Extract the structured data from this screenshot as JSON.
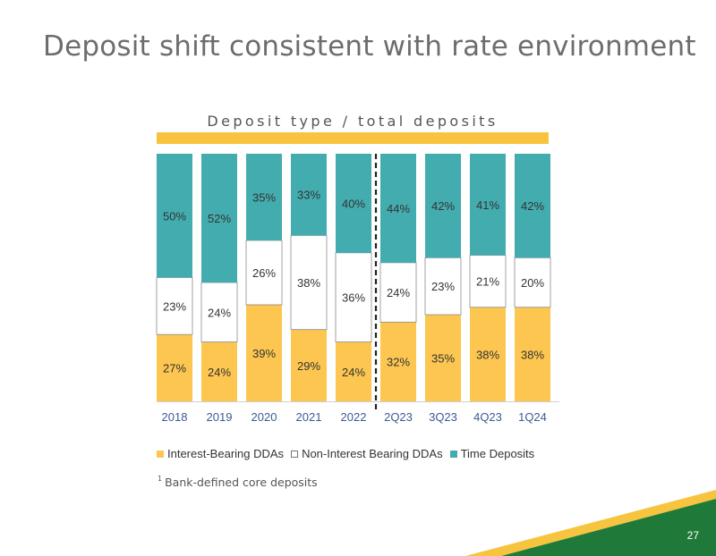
{
  "title": "Deposit shift consistent with rate environment",
  "chart_header": "Deposit type / total deposits",
  "footnote": {
    "marker": "1",
    "text": "Bank-defined core deposits"
  },
  "page_number": "27",
  "colors": {
    "interest_bearing": "#fcc650",
    "non_interest_bearing": "#ffffff",
    "time_deposits": "#43acaf",
    "accent_bar": "#f8c440",
    "corner_green": "#1f7a3a",
    "corner_yellow": "#f6c43e",
    "axis_label": "#3b5a94"
  },
  "chart_data": {
    "type": "bar",
    "stacked": true,
    "normalized_to_percent": true,
    "title": "Deposit type / total deposits",
    "xlabel": "",
    "ylabel": "",
    "categories": [
      "2018",
      "2019",
      "2020",
      "2021",
      "2022",
      "2Q23",
      "3Q23",
      "4Q23",
      "1Q24"
    ],
    "series": [
      {
        "name": "Interest-Bearing DDAs",
        "values": [
          27,
          24,
          39,
          29,
          24,
          32,
          35,
          38,
          38
        ],
        "labels": [
          "27%",
          "24%",
          "39%",
          "29%",
          "24%",
          "32%",
          "35%",
          "38%",
          "38%"
        ]
      },
      {
        "name": "Non-Interest Bearing DDAs",
        "values": [
          23,
          24,
          26,
          38,
          36,
          24,
          23,
          21,
          20
        ],
        "labels": [
          "23%",
          "24%",
          "26%",
          "38%",
          "36%",
          "24%",
          "23%",
          "21%",
          "20%"
        ]
      },
      {
        "name": "Time Deposits",
        "values": [
          50,
          52,
          35,
          33,
          40,
          44,
          42,
          41,
          42
        ],
        "labels": [
          "50%",
          "52%",
          "35%",
          "33%",
          "40%",
          "44%",
          "42%",
          "41%",
          "42%"
        ]
      }
    ],
    "divider_after_category": "2022",
    "legend_position": "bottom",
    "grid": false
  }
}
